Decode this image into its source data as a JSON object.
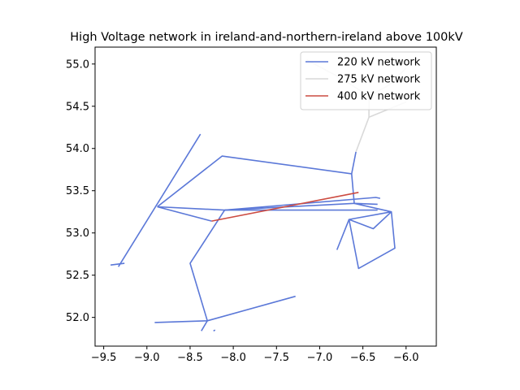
{
  "chart_data": {
    "type": "line",
    "title": "High Voltage network in ireland-and-northern-ireland above 100kV",
    "xlabel": "",
    "ylabel": "",
    "xlim": [
      -9.6,
      -5.65
    ],
    "ylim": [
      51.66,
      55.2
    ],
    "xticks": [
      -9.5,
      -9.0,
      -8.5,
      -8.0,
      -7.5,
      -7.0,
      -6.5,
      -6.0
    ],
    "xtick_labels": [
      "−9.5",
      "−9.0",
      "−8.5",
      "−8.0",
      "−7.5",
      "−7.0",
      "−6.5",
      "−6.0"
    ],
    "yticks": [
      52.0,
      52.5,
      53.0,
      53.5,
      54.0,
      54.5,
      55.0
    ],
    "ytick_labels": [
      "52.0",
      "52.5",
      "53.0",
      "53.5",
      "54.0",
      "54.5",
      "55.0"
    ],
    "grid": false,
    "legend_position": "top-right",
    "series": [
      {
        "name": "220 kV network",
        "color": "#5b78d8",
        "segments": [
          [
            [
              -8.38,
              54.17
            ],
            [
              -9.33,
              52.6
            ]
          ],
          [
            [
              -9.42,
              52.62
            ],
            [
              -9.26,
              52.64
            ]
          ],
          [
            [
              -8.88,
              53.31
            ],
            [
              -8.25,
              53.14
            ]
          ],
          [
            [
              -8.88,
              53.31
            ],
            [
              -8.1,
              53.27
            ],
            [
              -6.33,
              53.27
            ]
          ],
          [
            [
              -8.88,
              53.31
            ],
            [
              -8.13,
              53.91
            ],
            [
              -6.63,
              53.7
            ],
            [
              -6.58,
              53.96
            ]
          ],
          [
            [
              -6.63,
              53.7
            ],
            [
              -6.6,
              53.35
            ],
            [
              -6.33,
              53.34
            ]
          ],
          [
            [
              -8.1,
              53.27
            ],
            [
              -6.35,
              53.42
            ],
            [
              -6.3,
              53.41
            ]
          ],
          [
            [
              -8.1,
              53.27
            ],
            [
              -8.5,
              52.64
            ],
            [
              -8.3,
              51.96
            ]
          ],
          [
            [
              -8.91,
              51.94
            ],
            [
              -8.3,
              51.96
            ],
            [
              -7.28,
              52.25
            ]
          ],
          [
            [
              -8.37,
              51.84
            ],
            [
              -8.3,
              51.96
            ]
          ],
          [
            [
              -8.23,
              51.84
            ],
            [
              -8.21,
              51.85
            ]
          ],
          [
            [
              -6.6,
              53.35
            ],
            [
              -6.17,
              53.25
            ],
            [
              -6.38,
              53.05
            ],
            [
              -6.66,
              53.16
            ],
            [
              -6.17,
              53.25
            ]
          ],
          [
            [
              -6.66,
              53.16
            ],
            [
              -6.8,
              52.8
            ]
          ],
          [
            [
              -6.66,
              53.16
            ],
            [
              -6.55,
              52.58
            ],
            [
              -6.13,
              52.82
            ],
            [
              -6.17,
              53.25
            ]
          ],
          [
            [
              -8.1,
              53.27
            ],
            [
              -6.6,
              53.35
            ]
          ]
        ]
      },
      {
        "name": "275 kV network",
        "color": "#d9d9d9",
        "segments": [
          [
            [
              -6.58,
              53.96
            ],
            [
              -6.43,
              54.37
            ],
            [
              -6.0,
              54.55
            ]
          ],
          [
            [
              -6.43,
              54.37
            ],
            [
              -6.43,
              54.62
            ],
            [
              -6.75,
              54.83
            ],
            [
              -7.15,
              55.05
            ]
          ],
          [
            [
              -6.43,
              54.62
            ],
            [
              -6.2,
              54.75
            ],
            [
              -6.0,
              54.95
            ]
          ]
        ]
      },
      {
        "name": "400 kV network",
        "color": "#cc4b41",
        "segments": [
          [
            [
              -8.25,
              53.14
            ],
            [
              -6.55,
              53.48
            ]
          ]
        ]
      }
    ]
  }
}
